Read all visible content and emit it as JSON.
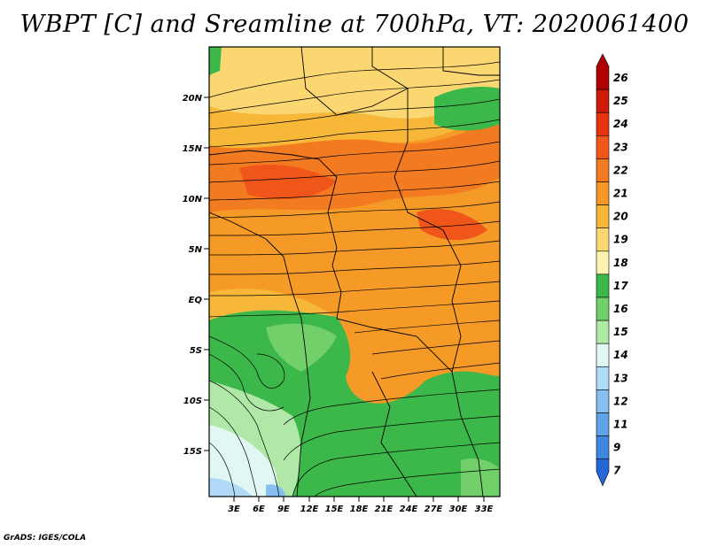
{
  "title": "WBPT [C] and Sreamline at 700hPa, VT: 2020061400",
  "footer": "GrADS: IGES/COLA",
  "map": {
    "lat_labels": [
      "20N",
      "15N",
      "10N",
      "5N",
      "EQ",
      "5S",
      "10S",
      "15S"
    ],
    "lon_labels": [
      "3E",
      "6E",
      "9E",
      "12E",
      "15E",
      "18E",
      "21E",
      "24E",
      "27E",
      "30E",
      "33E"
    ]
  },
  "colorbar": {
    "labels": [
      "26",
      "25",
      "24",
      "23",
      "22",
      "21",
      "20",
      "19",
      "18",
      "17",
      "16",
      "15",
      "14",
      "13",
      "12",
      "11",
      "9",
      "7"
    ],
    "colors": [
      "#b00000",
      "#cf1a0a",
      "#e8340f",
      "#f0561a",
      "#f27a20",
      "#f59a26",
      "#f7b83a",
      "#fbd772",
      "#fdf2b0",
      "#3cb84a",
      "#72d06a",
      "#b0e8a8",
      "#e0f7f3",
      "#b0daf7",
      "#86c0f0",
      "#5ea4e8",
      "#3e88e0",
      "#2468d8"
    ]
  }
}
